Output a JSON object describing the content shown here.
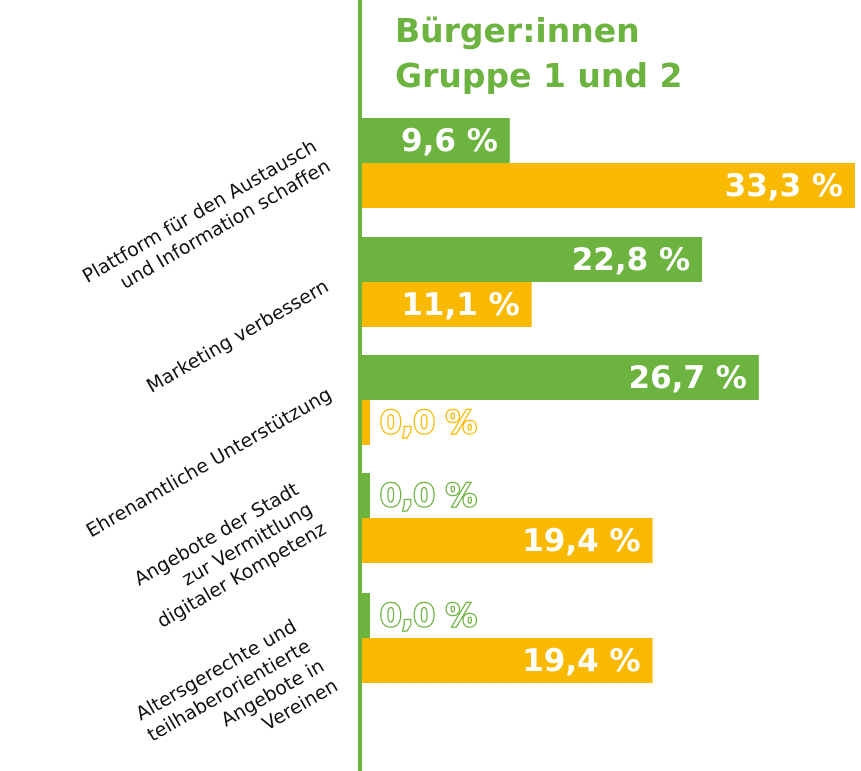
{
  "chart_data": {
    "type": "bar",
    "orientation": "horizontal",
    "title": [
      "Bürger:innen",
      "Gruppe 1 und 2"
    ],
    "categories": [
      [
        "Plattform für den Austausch",
        "und Information schaffen"
      ],
      [
        "Marketing verbessern"
      ],
      [
        "Ehrenamtliche Unterstützung"
      ],
      [
        "Angebote der Stadt",
        "zur Vermittlung",
        "digitaler Kompetenz"
      ],
      [
        "Altersgerechte und",
        "teilhaberorientierte",
        "Angebote in",
        "Vereinen"
      ]
    ],
    "series": [
      {
        "color": "#6cb33f",
        "values": [
          9.6,
          22.8,
          26.7,
          0.0,
          0.0
        ],
        "value_labels": [
          "9,6 %",
          "22,8 %",
          "26,7 %",
          "0,0 %",
          "0,0 %"
        ]
      },
      {
        "color": "#f9b900",
        "values": [
          33.3,
          11.1,
          0.0,
          19.4,
          19.4
        ],
        "value_labels": [
          "33,3 %",
          "11,1 %",
          "0,0 %",
          "19,4 %",
          "19,4 %"
        ]
      }
    ]
  }
}
